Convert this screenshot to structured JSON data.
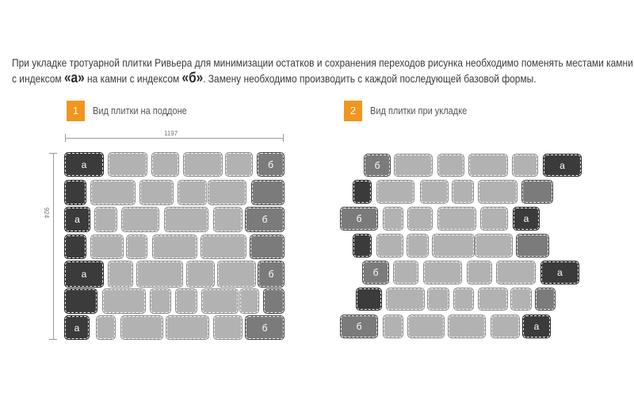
{
  "intro": {
    "line1": "При укладке тротуарной плитки Ривьера для минимизации остатков и сохранения переходов рисунка необходимо поменять местами камни",
    "line2_pre": "с индексом ",
    "index_a": "«а»",
    "line2_mid": " на камни с индексом ",
    "index_b": "«б»",
    "line2_post": ". Замену необходимо производить с каждой последующей базовой формы."
  },
  "panels": [
    {
      "number": "1",
      "caption": "Вид плитки на поддоне",
      "width_label": "1197",
      "height_label": "924"
    },
    {
      "number": "2",
      "caption": "Вид плитки при укладке"
    }
  ],
  "stone_labels": {
    "a": "а",
    "b": "б"
  },
  "colors": {
    "accent": "#f0961e",
    "stone_dark": "#3b3b3b",
    "stone_mid": "#7b7b7b",
    "stone_light": "#b2b2b2"
  },
  "stone_kinds": {
    "pallet": [
      [
        "a",
        "l",
        "l",
        "l",
        "l",
        "b"
      ],
      [
        "d",
        "l",
        "l",
        "l",
        "l",
        "m"
      ],
      [
        "a",
        "l",
        "l",
        "l",
        "l",
        "b"
      ],
      [
        "d",
        "l",
        "l",
        "l",
        "l",
        "m"
      ],
      [
        "a",
        "l",
        "l",
        "l",
        "l",
        "b"
      ],
      [
        "d",
        "l",
        "l",
        "l",
        "l",
        "l",
        "m"
      ],
      [
        "a",
        "l",
        "l",
        "l",
        "l",
        "b"
      ]
    ],
    "laid": [
      [
        "b",
        "l",
        "l",
        "l",
        "l",
        "a"
      ],
      [
        "d",
        "l",
        "l",
        "l",
        "l",
        "m"
      ],
      [
        "b",
        "l",
        "l",
        "l",
        "l",
        "a"
      ],
      [
        "d",
        "l",
        "l",
        "l",
        "l",
        "m"
      ],
      [
        "b",
        "l",
        "l",
        "l",
        "l",
        "a"
      ],
      [
        "d",
        "l",
        "l",
        "l",
        "l",
        "l",
        "m"
      ],
      [
        "b",
        "l",
        "l",
        "l",
        "l",
        "a"
      ]
    ]
  }
}
